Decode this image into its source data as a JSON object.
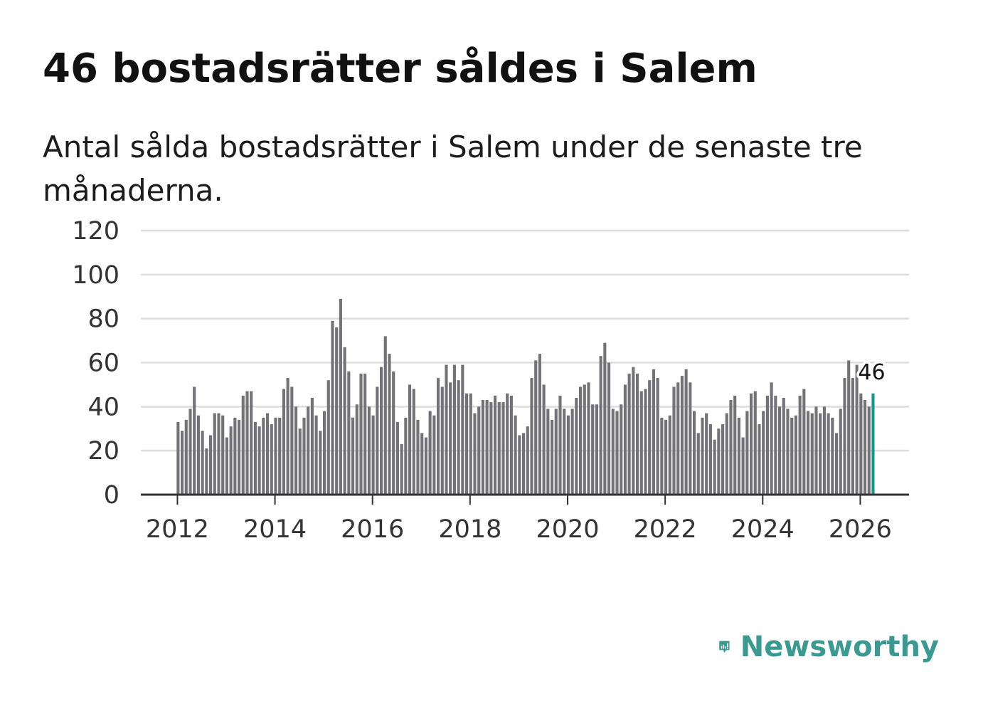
{
  "title": "46 bostadsrätter såldes i Salem",
  "subtitle": "Antal sålda bostadsrätter i Salem under de senaste tre månaderna.",
  "brand": {
    "name": "Newsworthy",
    "color": "#3a9a91"
  },
  "colors": {
    "bar": "#737276",
    "highlight": "#16958d",
    "grid": "#dddddd",
    "axis": "#333333"
  },
  "chart_data": {
    "type": "bar",
    "title": "Antal sålda bostadsrätter i Salem",
    "xlabel": "",
    "ylabel": "",
    "ylim": [
      0,
      120
    ],
    "yticks": [
      "0",
      "20",
      "40",
      "60",
      "80",
      "100",
      "120"
    ],
    "xticks": [
      "2012",
      "2014",
      "2016",
      "2018",
      "2020",
      "2022",
      "2024",
      "2026"
    ],
    "x_start": "2012-01",
    "x_axis_start": 2011.25,
    "x_axis_end": 2027,
    "frequency": "monthly",
    "highlight_last": true,
    "last_value_label": "46",
    "values": [
      33,
      29,
      34,
      39,
      49,
      36,
      29,
      21,
      27,
      37,
      37,
      36,
      26,
      31,
      35,
      34,
      45,
      47,
      47,
      33,
      31,
      35,
      37,
      32,
      35,
      35,
      48,
      53,
      49,
      40,
      30,
      35,
      40,
      44,
      36,
      29,
      38,
      52,
      79,
      76,
      89,
      67,
      56,
      35,
      41,
      55,
      55,
      40,
      36,
      49,
      58,
      72,
      64,
      56,
      33,
      23,
      35,
      50,
      48,
      34,
      28,
      26,
      38,
      36,
      53,
      49,
      59,
      51,
      59,
      52,
      59,
      46,
      46,
      37,
      40,
      43,
      43,
      42,
      45,
      42,
      42,
      46,
      45,
      36,
      27,
      28,
      31,
      53,
      61,
      64,
      50,
      39,
      34,
      39,
      45,
      39,
      36,
      39,
      44,
      49,
      50,
      51,
      41,
      41,
      63,
      69,
      60,
      39,
      38,
      41,
      50,
      55,
      58,
      55,
      47,
      48,
      52,
      57,
      53,
      35,
      34,
      36,
      49,
      51,
      54,
      57,
      51,
      38,
      28,
      35,
      37,
      32,
      25,
      30,
      32,
      37,
      43,
      45,
      35,
      26,
      38,
      46,
      47,
      32,
      38,
      45,
      51,
      45,
      40,
      44,
      39,
      35,
      36,
      45,
      48,
      38,
      37,
      40,
      37,
      40,
      37,
      35,
      28,
      39,
      53,
      61,
      53,
      59,
      46,
      43,
      40,
      46
    ]
  }
}
